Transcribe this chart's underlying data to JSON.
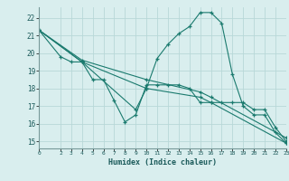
{
  "title": "",
  "xlabel": "Humidex (Indice chaleur)",
  "bg_color": "#d9eeee",
  "grid_color": "#b8d8d8",
  "line_color": "#1a7a6e",
  "xlim": [
    0,
    23
  ],
  "ylim": [
    14.6,
    22.6
  ],
  "yticks": [
    15,
    16,
    17,
    18,
    19,
    20,
    21,
    22
  ],
  "xticks": [
    0,
    2,
    3,
    4,
    5,
    6,
    7,
    8,
    9,
    10,
    11,
    12,
    13,
    14,
    15,
    16,
    17,
    18,
    19,
    20,
    21,
    22,
    23
  ],
  "line1": {
    "x": [
      0,
      2,
      3,
      4,
      5,
      6,
      7,
      8,
      9,
      10,
      11,
      12,
      13,
      14,
      15,
      16,
      17,
      18,
      19,
      20,
      21,
      22,
      23
    ],
    "y": [
      21.3,
      19.8,
      19.5,
      19.5,
      18.5,
      18.5,
      17.3,
      16.1,
      16.5,
      18.2,
      18.2,
      18.2,
      18.2,
      18.0,
      17.2,
      17.2,
      17.2,
      17.2,
      17.2,
      16.8,
      16.8,
      15.8,
      15.0
    ]
  },
  "line2": {
    "x": [
      0,
      4,
      10,
      15,
      16,
      23
    ],
    "y": [
      21.3,
      19.5,
      18.0,
      17.5,
      17.2,
      14.9
    ]
  },
  "line3": {
    "x": [
      0,
      4,
      10,
      15,
      16,
      23
    ],
    "y": [
      21.3,
      19.6,
      18.5,
      17.8,
      17.5,
      15.2
    ]
  },
  "line4": {
    "x": [
      0,
      4,
      9,
      10,
      11,
      12,
      13,
      14,
      15,
      16,
      17,
      18,
      19,
      20,
      21,
      22,
      23
    ],
    "y": [
      21.3,
      19.5,
      16.8,
      18.0,
      19.7,
      20.5,
      21.1,
      21.5,
      22.3,
      22.3,
      21.7,
      18.8,
      17.0,
      16.5,
      16.5,
      15.5,
      14.9
    ]
  }
}
